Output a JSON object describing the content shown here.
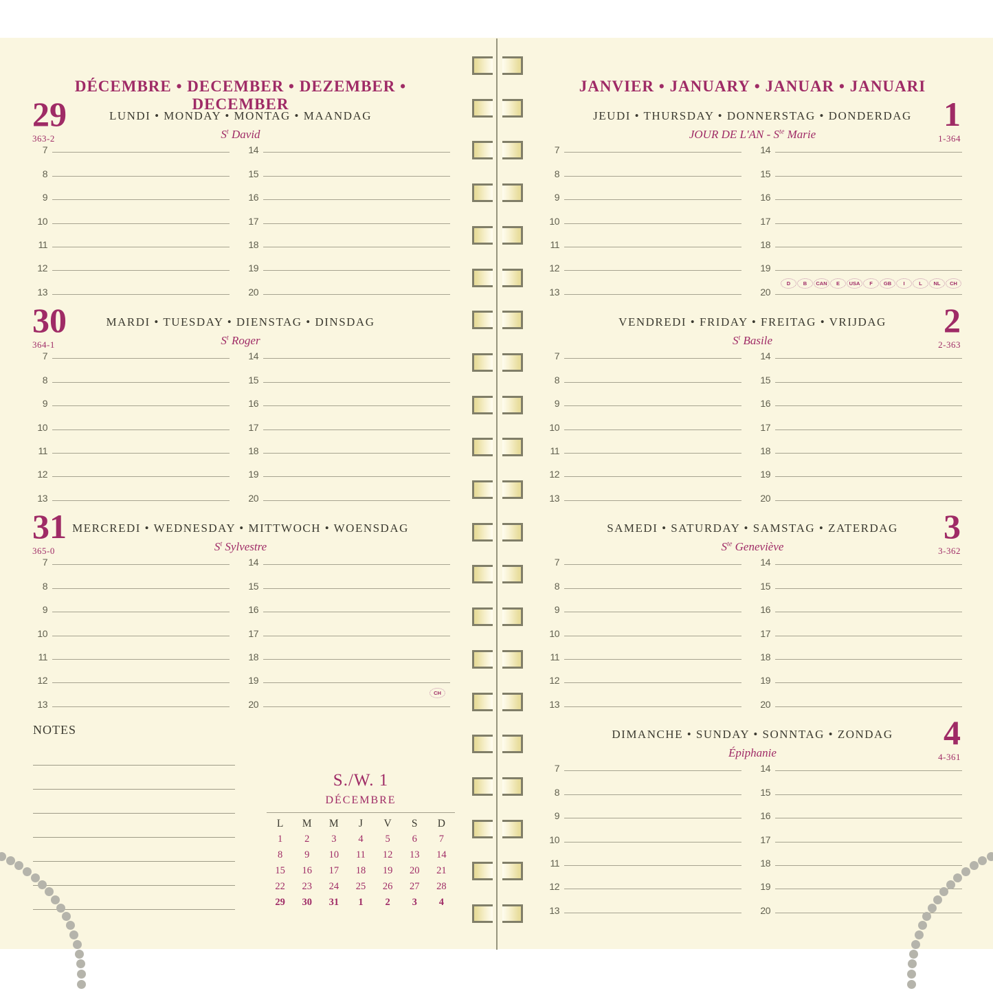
{
  "accent": "#9f2b66",
  "left": {
    "month_header": "DÉCEMBRE • DECEMBER • DEZEMBER • DECEMBER",
    "days": [
      {
        "number": "29",
        "ordinal": "363-2",
        "weekday": "LUNDI • MONDAY • MONTAG • MAANDAG",
        "saint": {
          "pre": "S",
          "sup": "t",
          "post": " David"
        }
      },
      {
        "number": "30",
        "ordinal": "364-1",
        "weekday": "MARDI • TUESDAY • DIENSTAG • DINSDAG",
        "saint": {
          "pre": "S",
          "sup": "t",
          "post": " Roger"
        }
      },
      {
        "number": "31",
        "ordinal": "365-0",
        "weekday": "MERCREDI • WEDNESDAY • MITTWOCH • WOENSDAG",
        "saint": {
          "pre": "S",
          "sup": "t",
          "post": " Sylvestre"
        }
      }
    ],
    "notes_label": "NOTES",
    "mini_calendar": {
      "week_label": "S./W. 1",
      "month": "DÉCEMBRE",
      "day_headers": [
        "L",
        "M",
        "M",
        "J",
        "V",
        "S",
        "D"
      ],
      "weeks": [
        [
          "1",
          "2",
          "3",
          "4",
          "5",
          "6",
          "7"
        ],
        [
          "8",
          "9",
          "10",
          "11",
          "12",
          "13",
          "14"
        ],
        [
          "15",
          "16",
          "17",
          "18",
          "19",
          "20",
          "21"
        ],
        [
          "22",
          "23",
          "24",
          "25",
          "26",
          "27",
          "28"
        ],
        [
          "29",
          "30",
          "31",
          "1",
          "2",
          "3",
          "4"
        ]
      ],
      "bold_week": 4
    }
  },
  "right": {
    "month_header": "JANVIER • JANUARY • JANUAR • JANUARI",
    "days": [
      {
        "number": "1",
        "ordinal": "1-364",
        "weekday": "JEUDI • THURSDAY • DONNERSTAG • DONDERDAG",
        "saint": {
          "pre": "JOUR DE L'AN - S",
          "sup": "te",
          "post": " Marie"
        }
      },
      {
        "number": "2",
        "ordinal": "2-363",
        "weekday": "VENDREDI • FRIDAY • FREITAG • VRIJDAG",
        "saint": {
          "pre": "S",
          "sup": "t",
          "post": " Basile"
        }
      },
      {
        "number": "3",
        "ordinal": "3-362",
        "weekday": "SAMEDI • SATURDAY • SAMSTAG • ZATERDAG",
        "saint": {
          "pre": "S",
          "sup": "te",
          "post": " Geneviève"
        }
      },
      {
        "number": "4",
        "ordinal": "4-361",
        "weekday": "DIMANCHE • SUNDAY • SONNTAG • ZONDAG",
        "saint": {
          "pre": "Épiphanie",
          "sup": "",
          "post": ""
        }
      }
    ]
  },
  "hours": {
    "col1": [
      "7",
      "8",
      "9",
      "10",
      "11",
      "12",
      "13"
    ],
    "col2": [
      "14",
      "15",
      "16",
      "17",
      "18",
      "19",
      "20"
    ]
  },
  "country_badges": [
    "D",
    "B",
    "CAN",
    "E",
    "USA",
    "F",
    "GB",
    "I",
    "L",
    "NL",
    "CH"
  ],
  "ch_badge": "CH"
}
